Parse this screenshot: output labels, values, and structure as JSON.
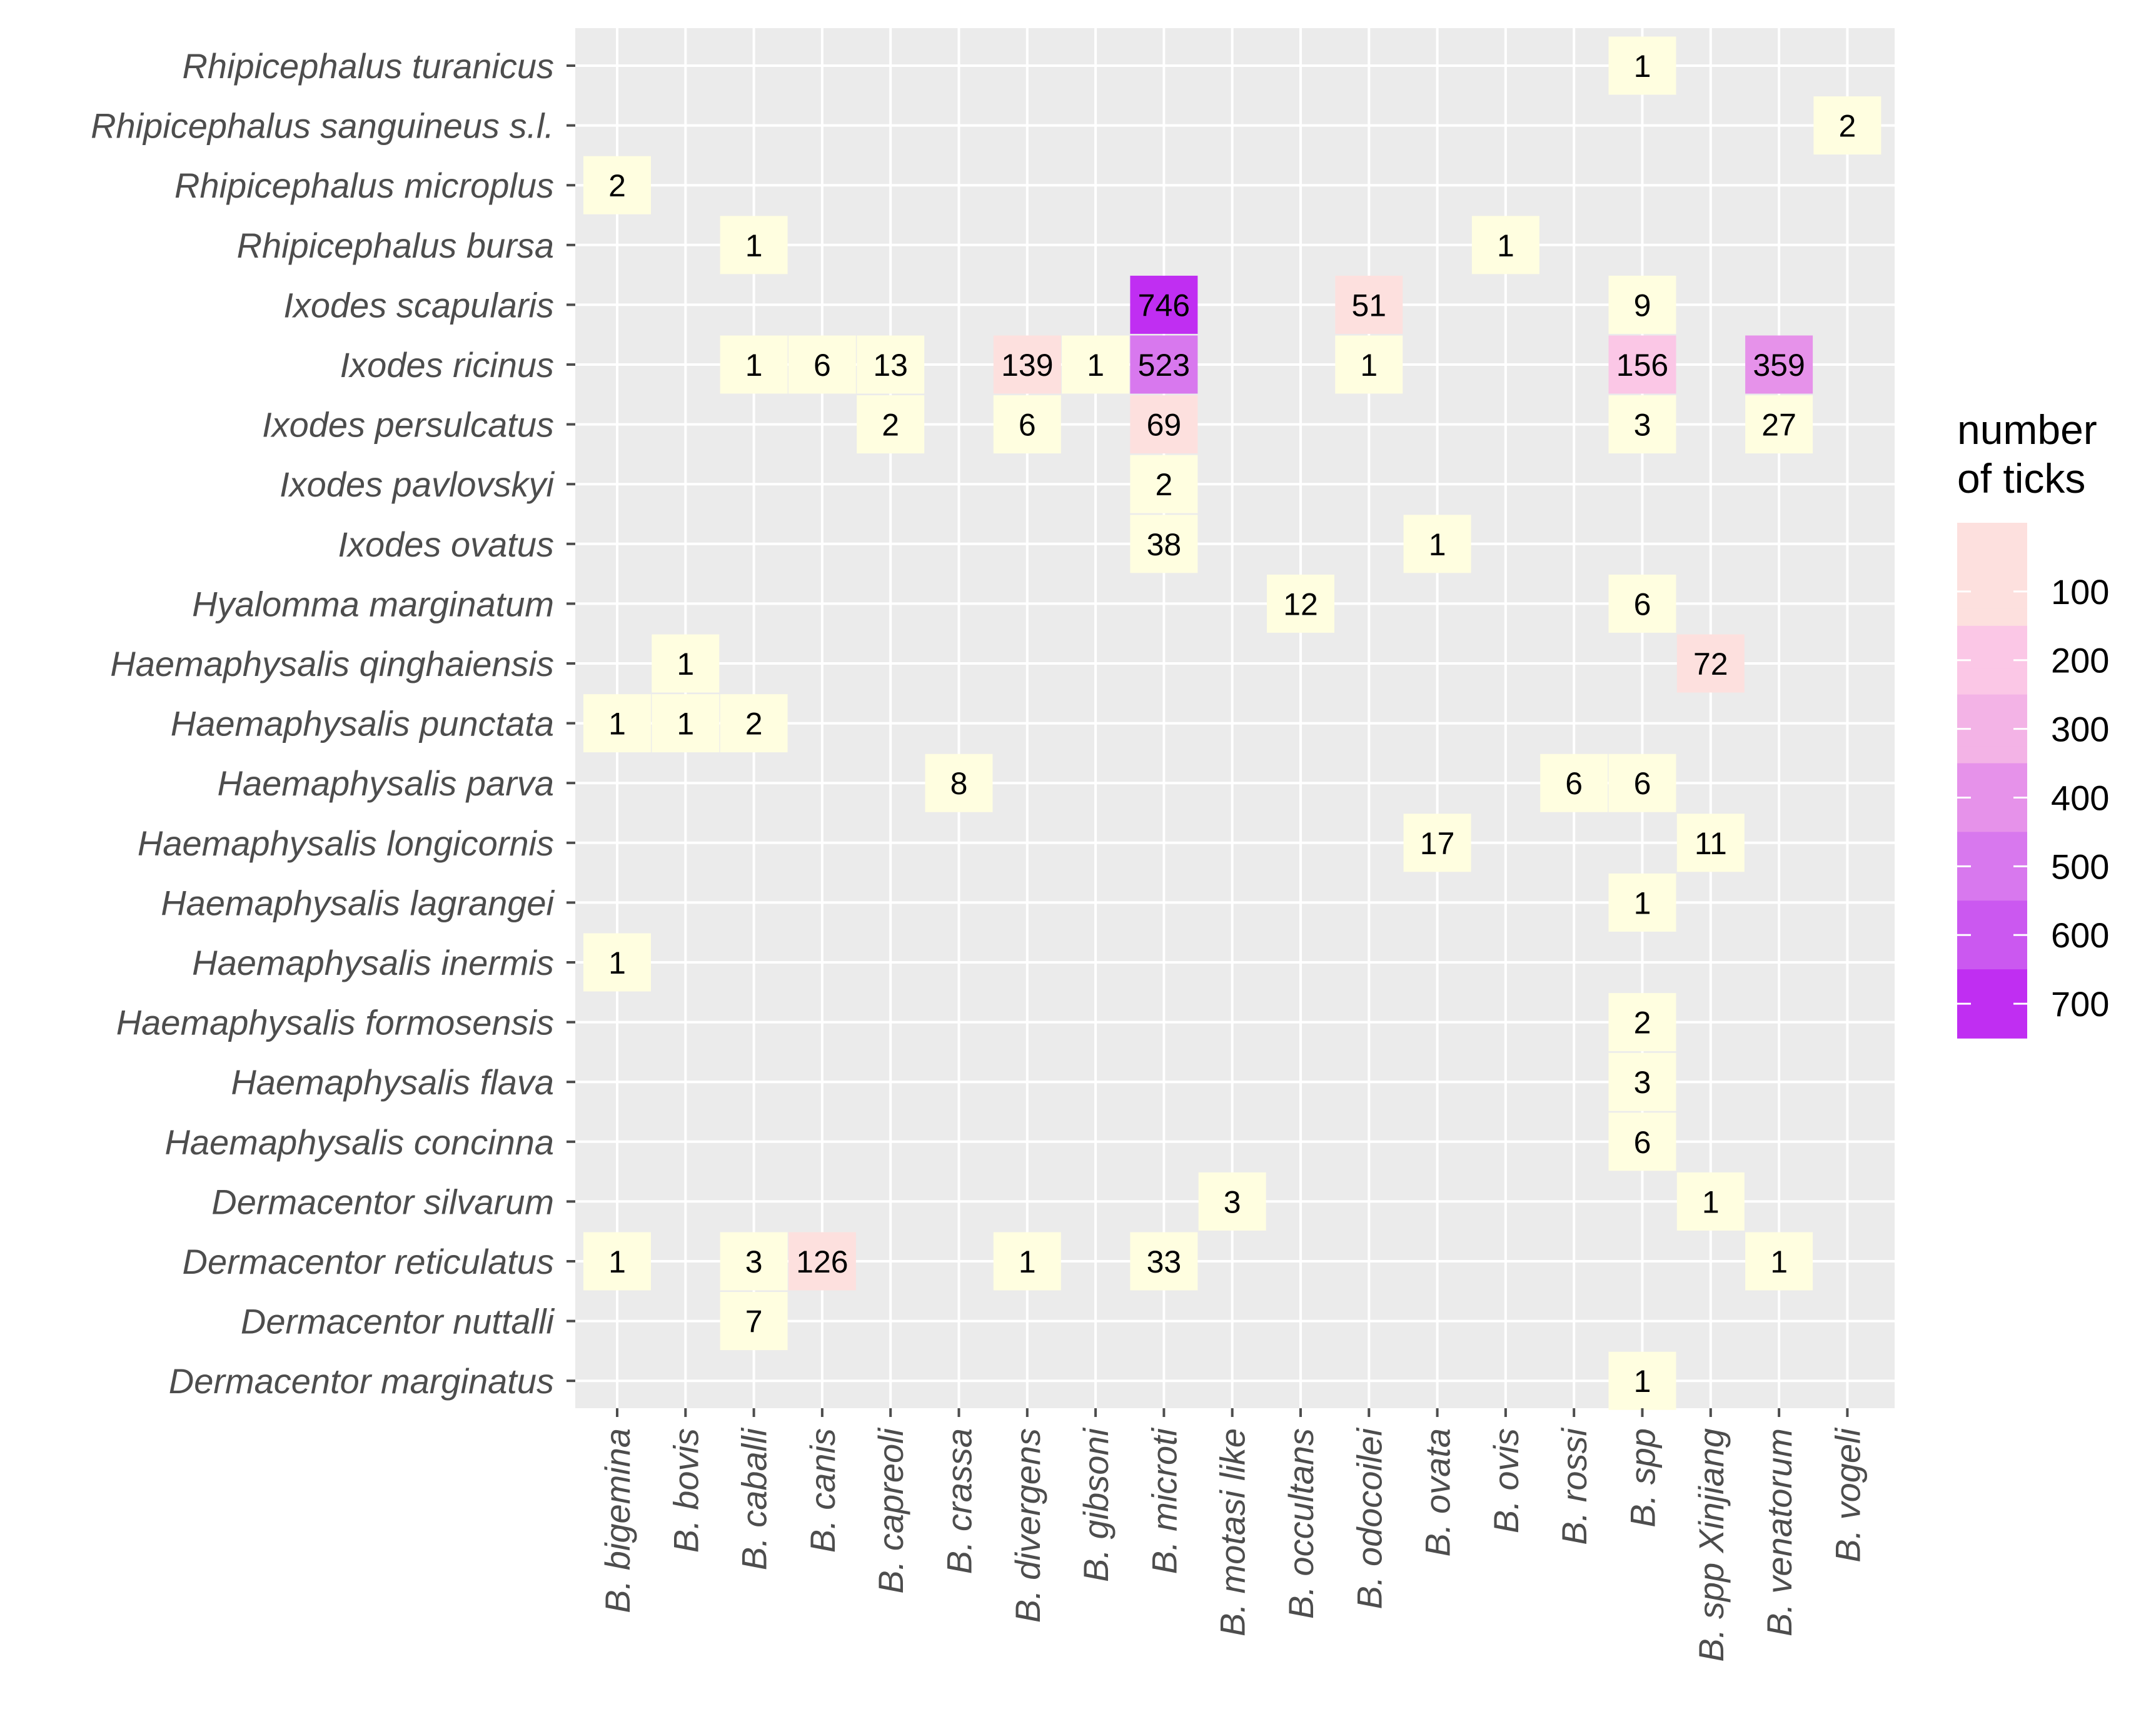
{
  "chart_data": {
    "type": "heatmap",
    "title": "",
    "xlabel": "",
    "ylabel": "",
    "x_categories": [
      "B. bigemina",
      "B. bovis",
      "B. caballi",
      "B. canis",
      "B. capreoli",
      "B. crassa",
      "B. divergens",
      "B. gibsoni",
      "B. microti",
      "B. motasi like",
      "B. occultans",
      "B. odocoilei",
      "B. ovata",
      "B. ovis",
      "B. rossi",
      "B. spp",
      "B. spp Xinjiang",
      "B. venatorum",
      "B. vogeli"
    ],
    "y_categories": [
      "Rhipicephalus turanicus",
      "Rhipicephalus sanguineus s.l.",
      "Rhipicephalus microplus",
      "Rhipicephalus bursa",
      "Ixodes scapularis",
      "Ixodes ricinus",
      "Ixodes persulcatus",
      "Ixodes pavlovskyi",
      "Ixodes ovatus",
      "Hyalomma marginatum",
      "Haemaphysalis qinghaiensis",
      "Haemaphysalis punctata",
      "Haemaphysalis parva",
      "Haemaphysalis longicornis",
      "Haemaphysalis lagrangei",
      "Haemaphysalis inermis",
      "Haemaphysalis formosensis",
      "Haemaphysalis flava",
      "Haemaphysalis concinna",
      "Dermacentor silvarum",
      "Dermacentor reticulatus",
      "Dermacentor nuttalli",
      "Dermacentor marginatus"
    ],
    "cells": [
      {
        "x": "B. spp",
        "y": "Rhipicephalus turanicus",
        "value": 1
      },
      {
        "x": "B. vogeli",
        "y": "Rhipicephalus sanguineus s.l.",
        "value": 2
      },
      {
        "x": "B. bigemina",
        "y": "Rhipicephalus microplus",
        "value": 2
      },
      {
        "x": "B. caballi",
        "y": "Rhipicephalus bursa",
        "value": 1
      },
      {
        "x": "B. ovis",
        "y": "Rhipicephalus bursa",
        "value": 1
      },
      {
        "x": "B. microti",
        "y": "Ixodes scapularis",
        "value": 746
      },
      {
        "x": "B. odocoilei",
        "y": "Ixodes scapularis",
        "value": 51
      },
      {
        "x": "B. spp",
        "y": "Ixodes scapularis",
        "value": 9
      },
      {
        "x": "B. caballi",
        "y": "Ixodes ricinus",
        "value": 1
      },
      {
        "x": "B. canis",
        "y": "Ixodes ricinus",
        "value": 6
      },
      {
        "x": "B. capreoli",
        "y": "Ixodes ricinus",
        "value": 13
      },
      {
        "x": "B. divergens",
        "y": "Ixodes ricinus",
        "value": 139
      },
      {
        "x": "B. gibsoni",
        "y": "Ixodes ricinus",
        "value": 1
      },
      {
        "x": "B. microti",
        "y": "Ixodes ricinus",
        "value": 523
      },
      {
        "x": "B. odocoilei",
        "y": "Ixodes ricinus",
        "value": 1
      },
      {
        "x": "B. spp",
        "y": "Ixodes ricinus",
        "value": 156
      },
      {
        "x": "B. venatorum",
        "y": "Ixodes ricinus",
        "value": 359
      },
      {
        "x": "B. capreoli",
        "y": "Ixodes persulcatus",
        "value": 2
      },
      {
        "x": "B. divergens",
        "y": "Ixodes persulcatus",
        "value": 6
      },
      {
        "x": "B. microti",
        "y": "Ixodes persulcatus",
        "value": 69
      },
      {
        "x": "B. spp",
        "y": "Ixodes persulcatus",
        "value": 3
      },
      {
        "x": "B. venatorum",
        "y": "Ixodes persulcatus",
        "value": 27
      },
      {
        "x": "B. microti",
        "y": "Ixodes pavlovskyi",
        "value": 2
      },
      {
        "x": "B. microti",
        "y": "Ixodes ovatus",
        "value": 38
      },
      {
        "x": "B. ovata",
        "y": "Ixodes ovatus",
        "value": 1
      },
      {
        "x": "B. occultans",
        "y": "Hyalomma marginatum",
        "value": 12
      },
      {
        "x": "B. spp",
        "y": "Hyalomma marginatum",
        "value": 6
      },
      {
        "x": "B. bovis",
        "y": "Haemaphysalis qinghaiensis",
        "value": 1
      },
      {
        "x": "B. spp Xinjiang",
        "y": "Haemaphysalis qinghaiensis",
        "value": 72
      },
      {
        "x": "B. bigemina",
        "y": "Haemaphysalis punctata",
        "value": 1
      },
      {
        "x": "B. bovis",
        "y": "Haemaphysalis punctata",
        "value": 1
      },
      {
        "x": "B. caballi",
        "y": "Haemaphysalis punctata",
        "value": 2
      },
      {
        "x": "B. crassa",
        "y": "Haemaphysalis parva",
        "value": 8
      },
      {
        "x": "B. rossi",
        "y": "Haemaphysalis parva",
        "value": 6
      },
      {
        "x": "B. spp",
        "y": "Haemaphysalis parva",
        "value": 6
      },
      {
        "x": "B. ovata",
        "y": "Haemaphysalis longicornis",
        "value": 17
      },
      {
        "x": "B. spp Xinjiang",
        "y": "Haemaphysalis longicornis",
        "value": 11
      },
      {
        "x": "B. spp",
        "y": "Haemaphysalis lagrangei",
        "value": 1
      },
      {
        "x": "B. bigemina",
        "y": "Haemaphysalis inermis",
        "value": 1
      },
      {
        "x": "B. spp",
        "y": "Haemaphysalis formosensis",
        "value": 2
      },
      {
        "x": "B. spp",
        "y": "Haemaphysalis flava",
        "value": 3
      },
      {
        "x": "B. spp",
        "y": "Haemaphysalis concinna",
        "value": 6
      },
      {
        "x": "B. motasi like",
        "y": "Dermacentor silvarum",
        "value": 3
      },
      {
        "x": "B. spp Xinjiang",
        "y": "Dermacentor silvarum",
        "value": 1
      },
      {
        "x": "B. bigemina",
        "y": "Dermacentor reticulatus",
        "value": 1
      },
      {
        "x": "B. caballi",
        "y": "Dermacentor reticulatus",
        "value": 3
      },
      {
        "x": "B. canis",
        "y": "Dermacentor reticulatus",
        "value": 126
      },
      {
        "x": "B. divergens",
        "y": "Dermacentor reticulatus",
        "value": 1
      },
      {
        "x": "B. microti",
        "y": "Dermacentor reticulatus",
        "value": 33
      },
      {
        "x": "B. venatorum",
        "y": "Dermacentor reticulatus",
        "value": 1
      },
      {
        "x": "B. caballi",
        "y": "Dermacentor nuttalli",
        "value": 7
      },
      {
        "x": "B. spp",
        "y": "Dermacentor marginatus",
        "value": 1
      }
    ],
    "legend": {
      "title_line1": "number",
      "title_line2": "of  ticks",
      "ticks": [
        "100",
        "200",
        "300",
        "400",
        "500",
        "600",
        "700"
      ],
      "tick_values": [
        100,
        200,
        300,
        400,
        500,
        600,
        700
      ],
      "range": [
        0,
        750
      ],
      "placement": "right"
    },
    "colors": {
      "panel": "#ebebeb",
      "grid": "#ffffff",
      "tick": "#4d4d4d",
      "scale_low": "#fffee0",
      "scale_100": "#fde0de",
      "scale_200": "#fbc7e6",
      "scale_300": "#f3b3e6",
      "scale_400": "#e692ea",
      "scale_500": "#d878ee",
      "scale_600": "#cb58f0",
      "scale_700": "#c02ef2"
    }
  }
}
